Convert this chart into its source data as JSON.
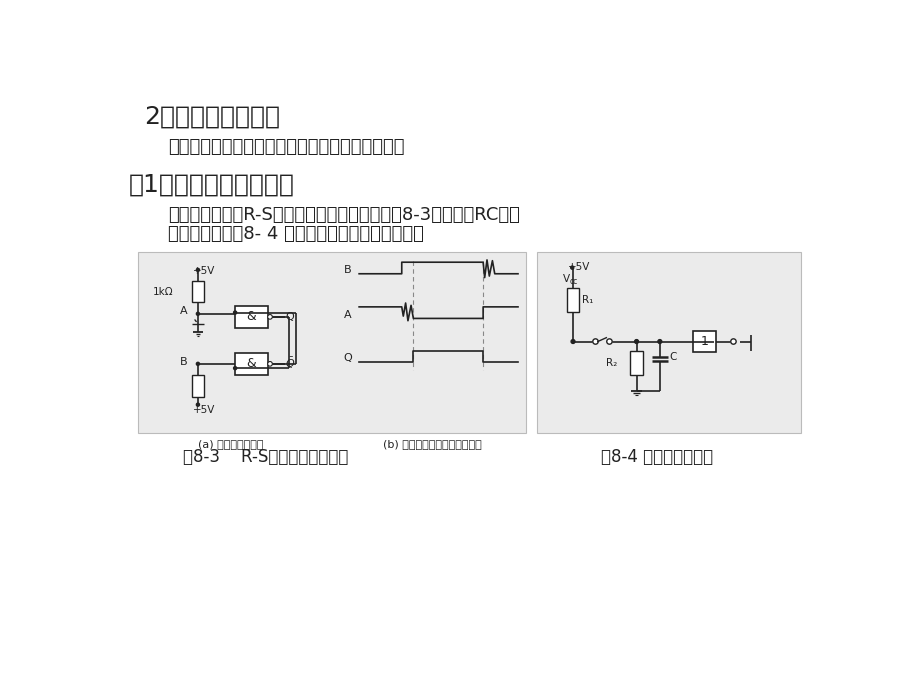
{
  "title1": "2．抖动的消除方法",
  "para1": "消除抖动的方法有硬件消抖法和软件消抖法两种。",
  "title2": "（1）硬件消除抖动方法",
  "para2_line1": "采用简单的基本R-S触发器或单稳态电路（如图8-3所示）或RC积分",
  "para2_line2": "滤波电路（如图8- 4 所示）构成去抖动按键电路。",
  "caption1": "图8-3    R-S触发器消抖动电路",
  "caption2": "图8-4 滤波消抖动电路",
  "sub_a": "(a) 去抖动按键电路",
  "sub_b": "(b) 键闭合、断开时的电压波动",
  "text_color": "#222222",
  "dc": "#222222",
  "diagram_bg_color": "#e8e8e8",
  "diagram_border_color": "#aaaaaa"
}
